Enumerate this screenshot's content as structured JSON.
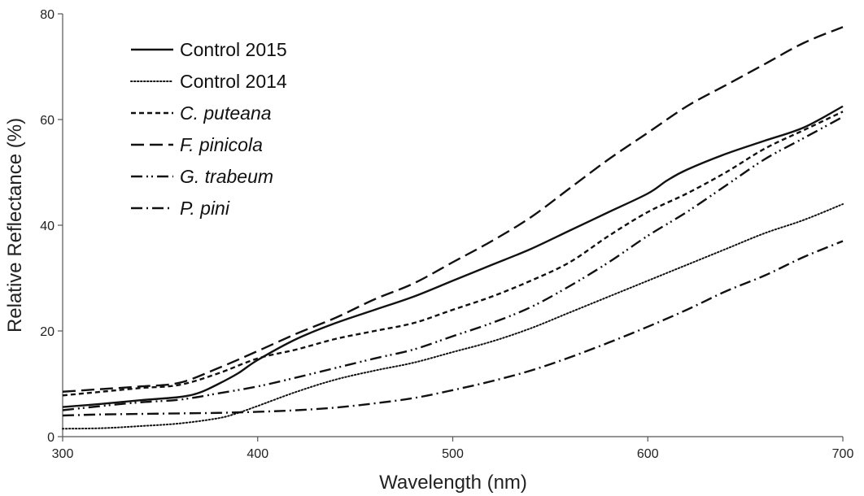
{
  "chart_data": {
    "type": "line",
    "title": "",
    "xlabel": "Wavelength (nm)",
    "ylabel": "Relative Reflectance (%)",
    "xlim": [
      300,
      700
    ],
    "ylim": [
      0,
      80
    ],
    "xticks": [
      "300",
      "400",
      "500",
      "600",
      "700"
    ],
    "yticks": [
      "0",
      "20",
      "40",
      "60",
      "80"
    ],
    "grid": false,
    "legend_position": "top-left",
    "series": [
      {
        "name": "Control 2015",
        "italic": false,
        "dash": "solid",
        "color": "#111111",
        "x": [
          300,
          320,
          340,
          360,
          370,
          380,
          390,
          400,
          420,
          440,
          460,
          480,
          500,
          520,
          540,
          560,
          580,
          600,
          610,
          620,
          640,
          660,
          680,
          700
        ],
        "y": [
          5.6,
          6.2,
          6.9,
          7.5,
          8.3,
          10.0,
          12.0,
          14.5,
          18.5,
          21.5,
          24.0,
          26.5,
          29.5,
          32.5,
          35.5,
          39.0,
          42.5,
          46.0,
          48.5,
          50.5,
          53.5,
          56.0,
          58.5,
          62.5
        ]
      },
      {
        "name": "Control 2014",
        "italic": false,
        "dash": "dotted",
        "color": "#111111",
        "x": [
          300,
          320,
          340,
          360,
          380,
          390,
          400,
          420,
          440,
          460,
          480,
          500,
          520,
          540,
          560,
          580,
          600,
          620,
          640,
          660,
          680,
          700
        ],
        "y": [
          1.5,
          1.6,
          2.0,
          2.5,
          3.5,
          4.5,
          5.8,
          8.5,
          10.8,
          12.5,
          14.0,
          16.0,
          18.0,
          20.5,
          23.5,
          26.5,
          29.5,
          32.5,
          35.5,
          38.5,
          41.0,
          44.0
        ]
      },
      {
        "name": "C. puteana",
        "italic": true,
        "dash": "short-dash",
        "color": "#111111",
        "x": [
          300,
          320,
          340,
          360,
          380,
          400,
          420,
          440,
          460,
          480,
          500,
          520,
          540,
          560,
          580,
          600,
          620,
          640,
          660,
          680,
          700
        ],
        "y": [
          7.8,
          8.5,
          9.2,
          9.8,
          12.0,
          14.8,
          16.5,
          18.5,
          20.0,
          21.5,
          24.0,
          26.5,
          29.5,
          33.0,
          38.0,
          42.5,
          46.0,
          50.0,
          54.5,
          58.0,
          61.5
        ]
      },
      {
        "name": "F. pinicola",
        "italic": true,
        "dash": "long-dash",
        "color": "#111111",
        "x": [
          300,
          320,
          340,
          360,
          380,
          400,
          420,
          440,
          460,
          480,
          500,
          520,
          540,
          560,
          580,
          600,
          620,
          640,
          660,
          680,
          700
        ],
        "y": [
          8.5,
          9.0,
          9.5,
          10.2,
          13.0,
          16.2,
          19.5,
          22.5,
          26.0,
          29.0,
          33.0,
          37.0,
          41.5,
          47.0,
          52.5,
          57.5,
          62.5,
          66.5,
          70.5,
          74.5,
          77.5
        ]
      },
      {
        "name": "G. trabeum",
        "italic": true,
        "dash": "dash-dot-dot",
        "color": "#111111",
        "x": [
          300,
          320,
          340,
          360,
          380,
          400,
          420,
          440,
          460,
          480,
          500,
          520,
          540,
          560,
          580,
          600,
          620,
          640,
          660,
          680,
          700
        ],
        "y": [
          5.0,
          5.8,
          6.5,
          7.0,
          8.2,
          9.5,
          11.2,
          13.0,
          14.8,
          16.5,
          19.0,
          21.5,
          24.5,
          28.5,
          33.0,
          38.0,
          42.5,
          47.5,
          52.5,
          56.5,
          60.5
        ]
      },
      {
        "name": "P. pini",
        "italic": true,
        "dash": "dash-dot",
        "color": "#111111",
        "x": [
          300,
          320,
          340,
          360,
          380,
          400,
          420,
          440,
          460,
          480,
          500,
          520,
          540,
          560,
          580,
          600,
          620,
          640,
          660,
          680,
          700
        ],
        "y": [
          4.0,
          4.2,
          4.3,
          4.4,
          4.5,
          4.7,
          5.0,
          5.5,
          6.3,
          7.3,
          8.8,
          10.5,
          12.5,
          15.0,
          17.8,
          20.8,
          24.0,
          27.5,
          30.5,
          34.0,
          37.0
        ]
      }
    ]
  }
}
